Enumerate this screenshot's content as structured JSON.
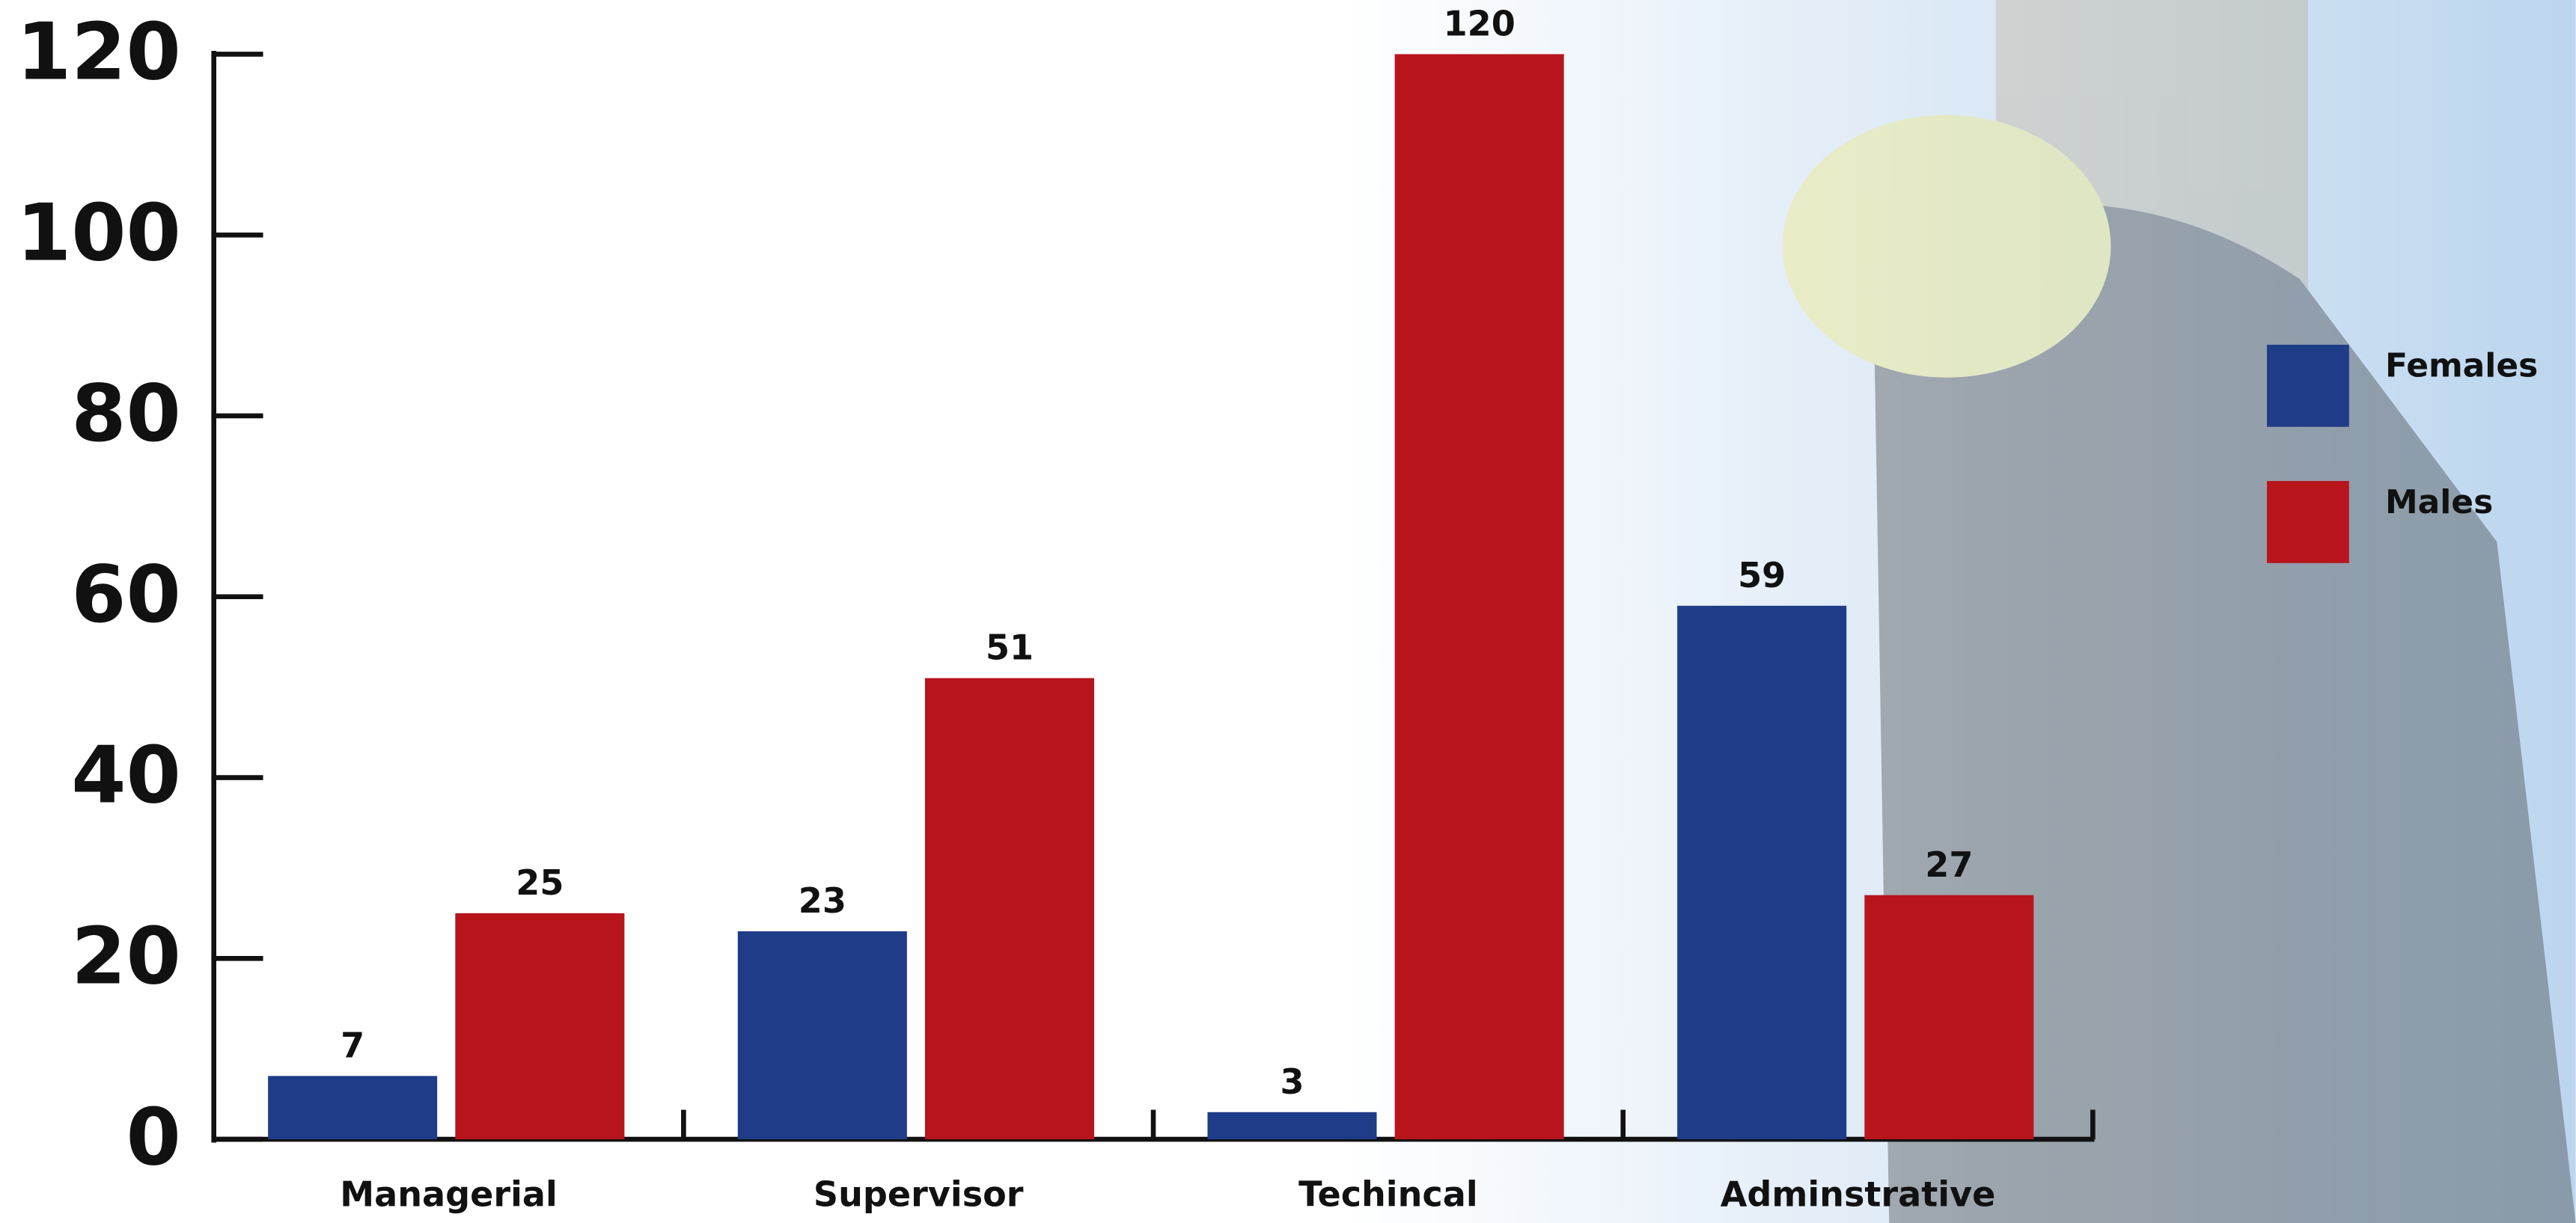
{
  "chart_data": {
    "type": "bar",
    "categories": [
      "Managerial",
      "Supervisor",
      "Techincal",
      "Adminstrative"
    ],
    "series": [
      {
        "name": "Females",
        "color": "#1e3c87",
        "values": [
          7,
          23,
          3,
          59
        ]
      },
      {
        "name": "Males",
        "color": "#b8141c",
        "values": [
          25,
          51,
          120,
          27
        ]
      }
    ],
    "ylim": [
      0,
      120
    ],
    "yticks": [
      0,
      20,
      40,
      60,
      80,
      100,
      120
    ],
    "legend": "right"
  }
}
